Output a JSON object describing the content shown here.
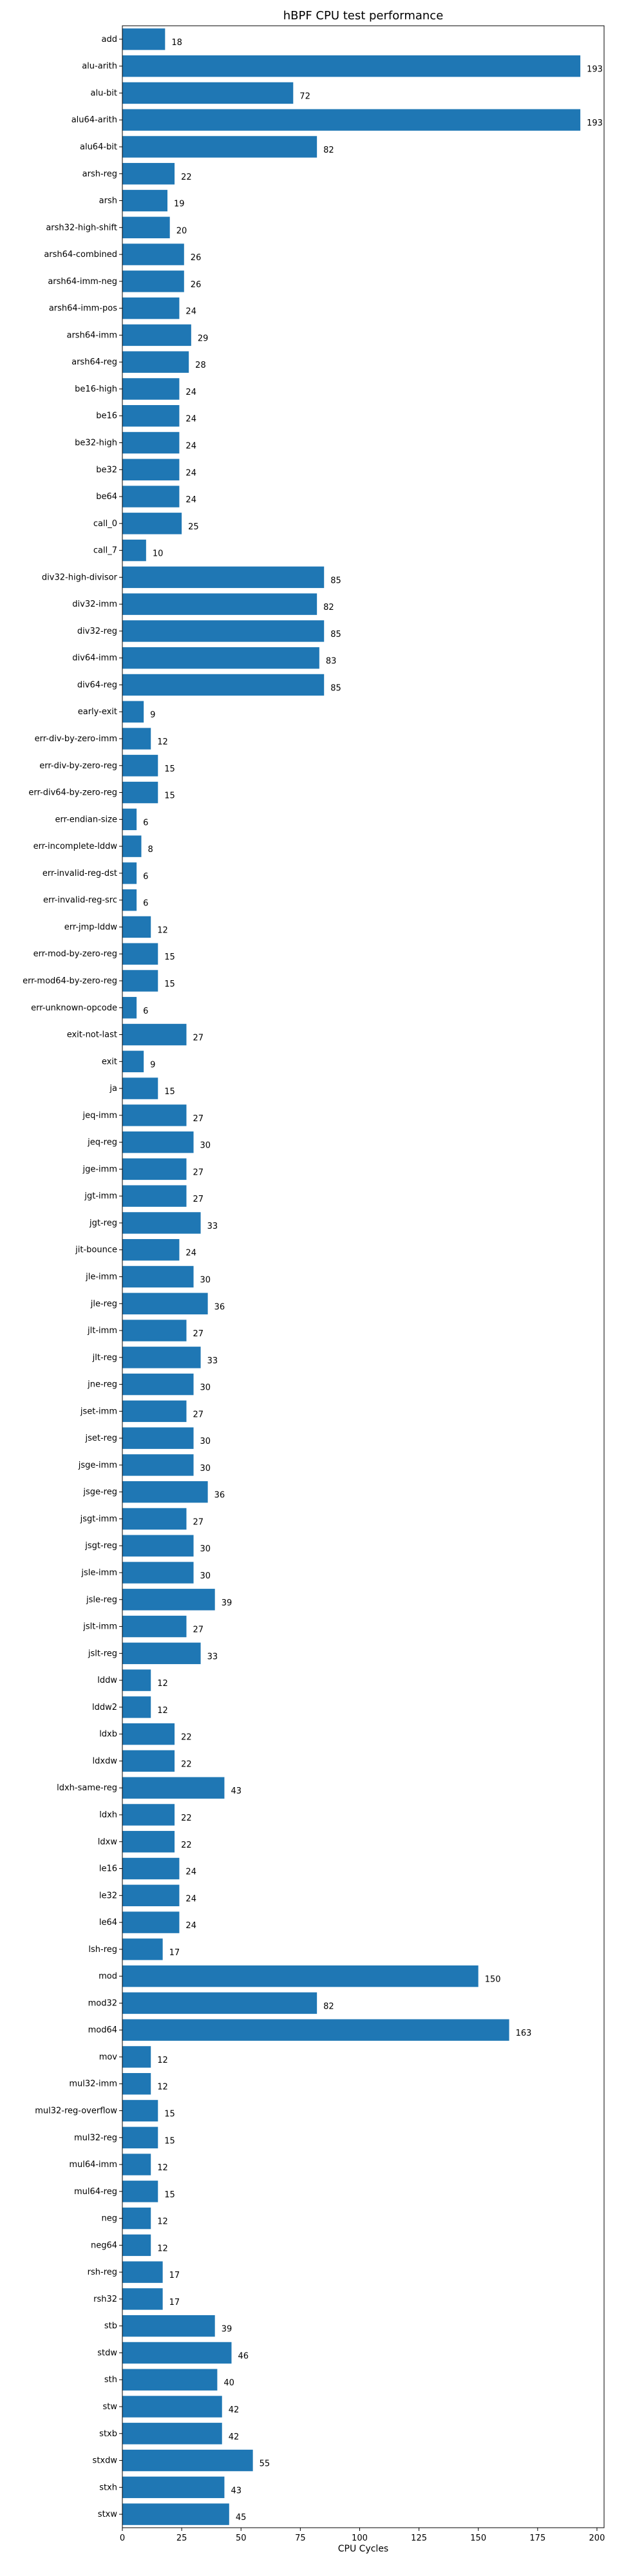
{
  "chart_data": {
    "type": "bar",
    "orientation": "horizontal",
    "title": "hBPF CPU test performance",
    "xlabel": "CPU Cycles",
    "ylabel": "",
    "xlim": [
      0,
      203
    ],
    "xticks": [
      0,
      25,
      50,
      75,
      100,
      125,
      150,
      175,
      200
    ],
    "grid": false,
    "bar_color": "#1f77b4",
    "categories": [
      "add",
      "alu-arith",
      "alu-bit",
      "alu64-arith",
      "alu64-bit",
      "arsh-reg",
      "arsh",
      "arsh32-high-shift",
      "arsh64-combined",
      "arsh64-imm-neg",
      "arsh64-imm-pos",
      "arsh64-imm",
      "arsh64-reg",
      "be16-high",
      "be16",
      "be32-high",
      "be32",
      "be64",
      "call_0",
      "call_7",
      "div32-high-divisor",
      "div32-imm",
      "div32-reg",
      "div64-imm",
      "div64-reg",
      "early-exit",
      "err-div-by-zero-imm",
      "err-div-by-zero-reg",
      "err-div64-by-zero-reg",
      "err-endian-size",
      "err-incomplete-lddw",
      "err-invalid-reg-dst",
      "err-invalid-reg-src",
      "err-jmp-lddw",
      "err-mod-by-zero-reg",
      "err-mod64-by-zero-reg",
      "err-unknown-opcode",
      "exit-not-last",
      "exit",
      "ja",
      "jeq-imm",
      "jeq-reg",
      "jge-imm",
      "jgt-imm",
      "jgt-reg",
      "jit-bounce",
      "jle-imm",
      "jle-reg",
      "jlt-imm",
      "jlt-reg",
      "jne-reg",
      "jset-imm",
      "jset-reg",
      "jsge-imm",
      "jsge-reg",
      "jsgt-imm",
      "jsgt-reg",
      "jsle-imm",
      "jsle-reg",
      "jslt-imm",
      "jslt-reg",
      "lddw",
      "lddw2",
      "ldxb",
      "ldxdw",
      "ldxh-same-reg",
      "ldxh",
      "ldxw",
      "le16",
      "le32",
      "le64",
      "lsh-reg",
      "mod",
      "mod32",
      "mod64",
      "mov",
      "mul32-imm",
      "mul32-reg-overflow",
      "mul32-reg",
      "mul64-imm",
      "mul64-reg",
      "neg",
      "neg64",
      "rsh-reg",
      "rsh32",
      "stb",
      "stdw",
      "sth",
      "stw",
      "stxb",
      "stxdw",
      "stxh",
      "stxw"
    ],
    "values": [
      18,
      193,
      72,
      193,
      82,
      22,
      19,
      20,
      26,
      26,
      24,
      29,
      28,
      24,
      24,
      24,
      24,
      24,
      25,
      10,
      85,
      82,
      85,
      83,
      85,
      9,
      12,
      15,
      15,
      6,
      8,
      6,
      6,
      12,
      15,
      15,
      6,
      27,
      9,
      15,
      27,
      30,
      27,
      27,
      33,
      24,
      30,
      36,
      27,
      33,
      30,
      27,
      30,
      30,
      36,
      27,
      30,
      30,
      39,
      27,
      33,
      12,
      12,
      22,
      22,
      43,
      22,
      22,
      24,
      24,
      24,
      17,
      150,
      82,
      163,
      12,
      12,
      15,
      15,
      12,
      15,
      12,
      12,
      17,
      17,
      39,
      46,
      40,
      42,
      42,
      55,
      43,
      45
    ]
  }
}
